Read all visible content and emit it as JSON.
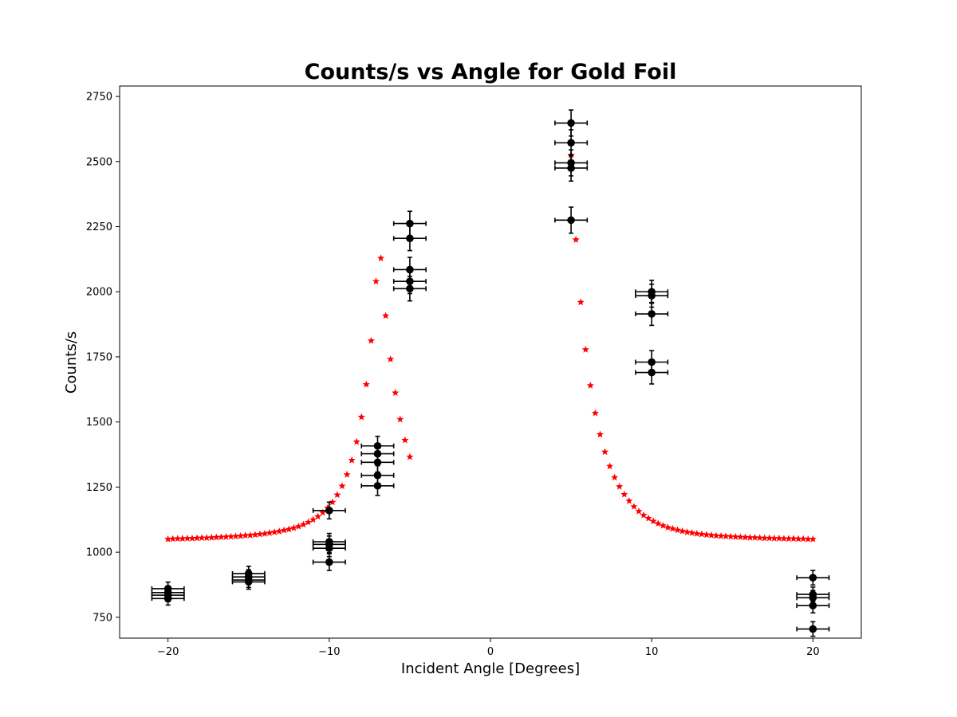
{
  "chart_data": {
    "type": "scatter",
    "title": "Counts/s vs Angle for Gold Foil",
    "xlabel": "Incident Angle [Degrees]",
    "ylabel": "Counts/s",
    "xlim": [
      -23,
      23
    ],
    "ylim": [
      670,
      2790
    ],
    "x_ticks": [
      -20,
      -10,
      0,
      10,
      20
    ],
    "x_tick_labels": [
      "−20",
      "−10",
      "0",
      "10",
      "20"
    ],
    "y_ticks": [
      750,
      1000,
      1250,
      1500,
      1750,
      2000,
      2250,
      2500,
      2750
    ],
    "y_tick_labels": [
      "750",
      "1000",
      "1250",
      "1500",
      "1750",
      "2000",
      "2250",
      "2500",
      "2750"
    ],
    "grid": false,
    "colors": {
      "measured": "#000000",
      "model": "#ff0000"
    },
    "measured": {
      "marker": "circle",
      "x_error": 1,
      "points": [
        {
          "x": -20,
          "y": 860,
          "yerr": 25
        },
        {
          "x": -20,
          "y": 845,
          "yerr": 25
        },
        {
          "x": -20,
          "y": 835,
          "yerr": 25
        },
        {
          "x": -20,
          "y": 822,
          "yerr": 25
        },
        {
          "x": -15,
          "y": 918,
          "yerr": 28
        },
        {
          "x": -15,
          "y": 905,
          "yerr": 28
        },
        {
          "x": -15,
          "y": 893,
          "yerr": 28
        },
        {
          "x": -15,
          "y": 886,
          "yerr": 28
        },
        {
          "x": -10,
          "y": 1160,
          "yerr": 32
        },
        {
          "x": -10,
          "y": 1040,
          "yerr": 32
        },
        {
          "x": -10,
          "y": 1030,
          "yerr": 32
        },
        {
          "x": -10,
          "y": 1015,
          "yerr": 32
        },
        {
          "x": -10,
          "y": 962,
          "yerr": 32
        },
        {
          "x": -7,
          "y": 1408,
          "yerr": 37
        },
        {
          "x": -7,
          "y": 1378,
          "yerr": 37
        },
        {
          "x": -7,
          "y": 1345,
          "yerr": 37
        },
        {
          "x": -7,
          "y": 1295,
          "yerr": 37
        },
        {
          "x": -7,
          "y": 1255,
          "yerr": 37
        },
        {
          "x": -5,
          "y": 2262,
          "yerr": 47
        },
        {
          "x": -5,
          "y": 2205,
          "yerr": 47
        },
        {
          "x": -5,
          "y": 2085,
          "yerr": 47
        },
        {
          "x": -5,
          "y": 2040,
          "yerr": 47
        },
        {
          "x": -5,
          "y": 2012,
          "yerr": 47
        },
        {
          "x": 5,
          "y": 2648,
          "yerr": 50
        },
        {
          "x": 5,
          "y": 2572,
          "yerr": 50
        },
        {
          "x": 5,
          "y": 2495,
          "yerr": 50
        },
        {
          "x": 5,
          "y": 2475,
          "yerr": 50
        },
        {
          "x": 5,
          "y": 2275,
          "yerr": 50
        },
        {
          "x": 10,
          "y": 2000,
          "yerr": 44
        },
        {
          "x": 10,
          "y": 1985,
          "yerr": 44
        },
        {
          "x": 10,
          "y": 1915,
          "yerr": 44
        },
        {
          "x": 10,
          "y": 1730,
          "yerr": 44
        },
        {
          "x": 10,
          "y": 1690,
          "yerr": 44
        },
        {
          "x": 20,
          "y": 902,
          "yerr": 28
        },
        {
          "x": 20,
          "y": 838,
          "yerr": 28
        },
        {
          "x": 20,
          "y": 825,
          "yerr": 28
        },
        {
          "x": 20,
          "y": 795,
          "yerr": 28
        },
        {
          "x": 20,
          "y": 705,
          "yerr": 28
        }
      ]
    },
    "model": {
      "marker": "star",
      "left": {
        "x": [
          -20.0,
          -19.7,
          -19.4,
          -19.1,
          -18.8,
          -18.5,
          -18.2,
          -17.9,
          -17.6,
          -17.3,
          -17.0,
          -16.7,
          -16.4,
          -16.1,
          -15.8,
          -15.5,
          -15.2,
          -14.9,
          -14.6,
          -14.3,
          -14.0,
          -13.7,
          -13.4,
          -13.1,
          -12.8,
          -12.5,
          -12.2,
          -11.9,
          -11.6,
          -11.3,
          -11.0,
          -10.7,
          -10.4,
          -10.1,
          -9.8,
          -9.5,
          -9.2,
          -8.9,
          -8.6,
          -8.3,
          -8.0,
          -7.7,
          -7.4,
          -7.1,
          -6.8,
          -6.5,
          -6.2,
          -5.9,
          -5.6,
          -5.3,
          -5.0
        ],
        "y": [
          1050,
          1051,
          1052,
          1052,
          1053,
          1053,
          1054,
          1055,
          1055,
          1056,
          1057,
          1058,
          1059,
          1060,
          1061,
          1062,
          1064,
          1065,
          1067,
          1069,
          1071,
          1074,
          1077,
          1080,
          1084,
          1088,
          1093,
          1099,
          1106,
          1115,
          1125,
          1137,
          1152,
          1170,
          1192,
          1220,
          1254,
          1298,
          1353,
          1424,
          1519,
          1644,
          1812,
          2040,
          2129,
          1908,
          1741,
          1612,
          1510,
          1430,
          1366
        ]
      },
      "right": {
        "x": [
          5.0,
          5.3,
          5.6,
          5.9,
          6.2,
          6.5,
          6.8,
          7.1,
          7.4,
          7.7,
          8.0,
          8.3,
          8.6,
          8.9,
          9.2,
          9.5,
          9.8,
          10.1,
          10.4,
          10.7,
          11.0,
          11.3,
          11.6,
          11.9,
          12.2,
          12.5,
          12.8,
          13.1,
          13.4,
          13.7,
          14.0,
          14.3,
          14.6,
          14.9,
          15.2,
          15.5,
          15.8,
          16.1,
          16.4,
          16.7,
          17.0,
          17.3,
          17.6,
          17.9,
          18.2,
          18.5,
          18.8,
          19.1,
          19.4,
          19.7,
          20.0
        ],
        "y": [
          2525,
          2200,
          1960,
          1778,
          1640,
          1534,
          1452,
          1385,
          1330,
          1287,
          1252,
          1222,
          1197,
          1175,
          1157,
          1142,
          1130,
          1119,
          1110,
          1102,
          1095,
          1090,
          1085,
          1081,
          1077,
          1074,
          1071,
          1069,
          1067,
          1065,
          1063,
          1062,
          1061,
          1060,
          1059,
          1058,
          1057,
          1056,
          1056,
          1055,
          1054,
          1054,
          1053,
          1053,
          1052,
          1052,
          1052,
          1051,
          1051,
          1050,
          1050
        ]
      }
    }
  }
}
